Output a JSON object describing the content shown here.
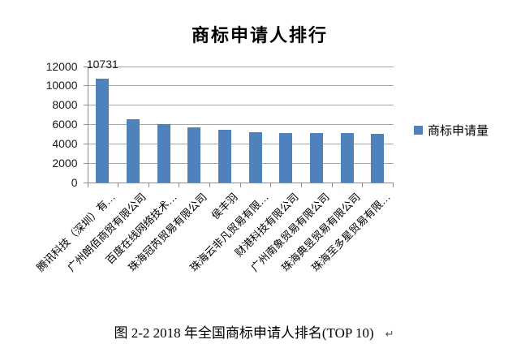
{
  "title": "商标申请人排行",
  "legend": {
    "label": "商标申请量"
  },
  "y_axis": {
    "tick_labels": [
      "0",
      "2000",
      "4000",
      "6000",
      "8000",
      "10000",
      "12000"
    ]
  },
  "chart_data": {
    "type": "bar",
    "title": "商标申请人排行",
    "categories": [
      "腾讯科技（深圳）有…",
      "广州朗佰商贸有限公司",
      "百度在线网络技术…",
      "珠海冠芮贸易有限公司",
      "侯丰羽",
      "珠海云非凡贸易有限…",
      "财港科技有限公司",
      "广州南象贸易有限公司",
      "珠海典昱贸易有限公司",
      "珠海至多星贸易有限…"
    ],
    "series": [
      {
        "name": "商标申请量",
        "values": [
          10731,
          6500,
          6050,
          5700,
          5400,
          5150,
          5120,
          5100,
          5070,
          5050
        ]
      }
    ],
    "ylim": [
      0,
      12000
    ],
    "ytick_interval": 2000,
    "grid": true,
    "legend_position": "right",
    "bar_color": "#4f81bd",
    "data_labels": [
      {
        "index": 0,
        "text": "10731"
      }
    ]
  },
  "caption": {
    "text": "图 2-2 2018 年全国商标申请人排名(TOP 10)",
    "paragraph_mark": "↵"
  }
}
